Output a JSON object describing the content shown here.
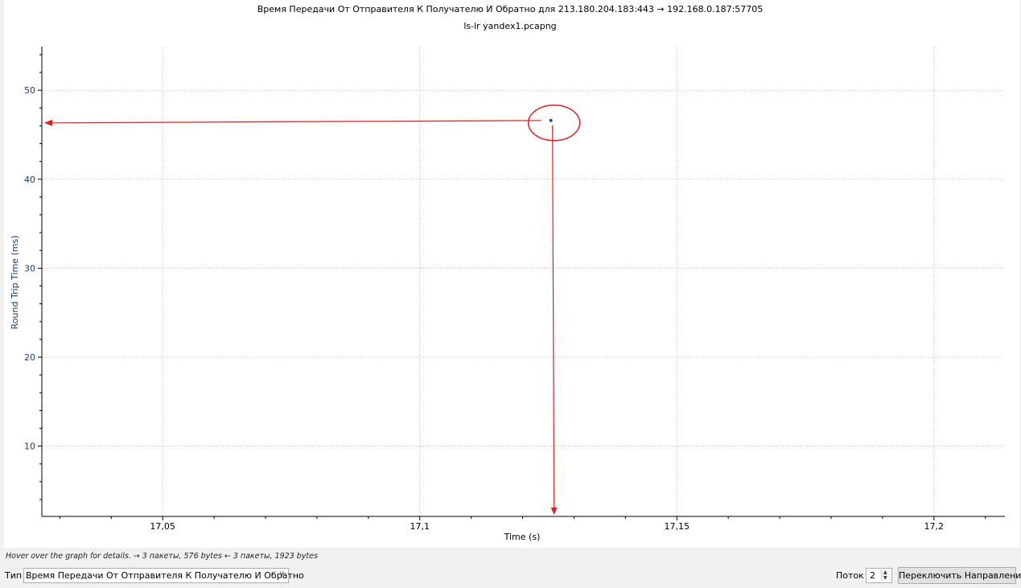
{
  "chart_data": {
    "type": "scatter",
    "title": "Время Передачи От Отправителя К Получателю И Обратно для 213.180.204.183:443 → 192.168.0.187:57705",
    "subtitle": "ls-lr yandex1.pcapng",
    "xlabel": "Time (s)",
    "ylabel": "Round Trip Time (ms)",
    "xlim": [
      17.0265,
      17.2138
    ],
    "ylim": [
      2.1,
      54.9
    ],
    "x_ticks": [
      17.05,
      17.1,
      17.15,
      17.2
    ],
    "x_tick_labels": [
      "17,05",
      "17,1",
      "17,15",
      "17,2"
    ],
    "y_ticks": [
      10,
      20,
      30,
      40,
      50
    ],
    "y_tick_labels": [
      "10",
      "20",
      "30",
      "40",
      "50"
    ],
    "grid": true,
    "points": [
      {
        "x": 17.1255,
        "y": 46.6
      }
    ],
    "point_color": "#1f4e8c",
    "annotation_color": "#e02020"
  },
  "hint_text": "Hover over the graph for details. → 3 пакеты, 576 bytes ← 3 пакеты, 1923 bytes",
  "controls": {
    "type_label": "Тип",
    "type_value": "Время Передачи От Отправителя К Получателю И Обратно",
    "stream_label": "Поток",
    "stream_value": "2",
    "switch_direction_label": "Переключить Направление"
  }
}
